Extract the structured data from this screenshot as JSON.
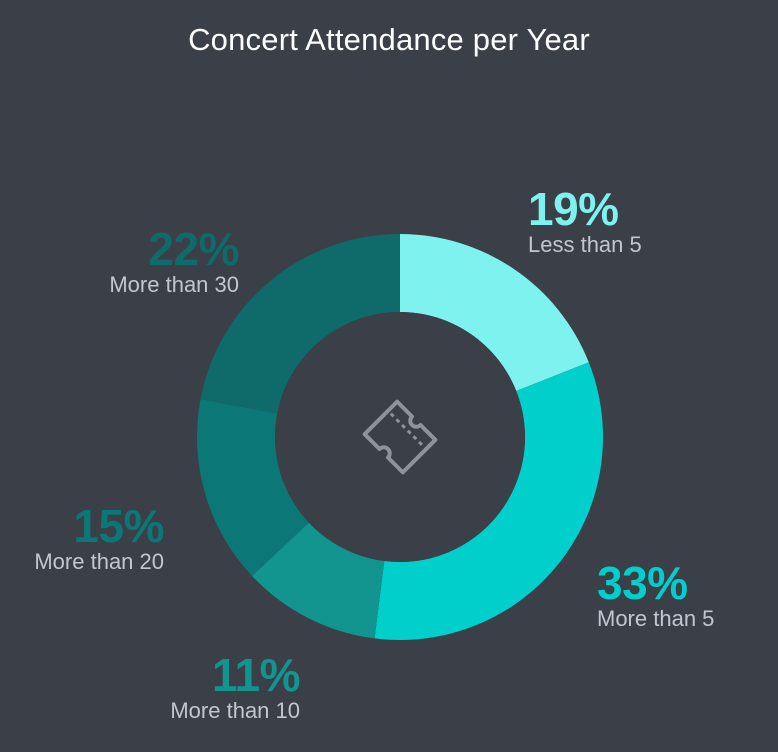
{
  "chart_data": {
    "type": "pie",
    "title": "Concert Attendance per Year",
    "center_icon": "ticket-icon",
    "slices": [
      {
        "label": "Less than 5",
        "value": 19,
        "display": "19%",
        "color": "#7ef2ee",
        "label_color": "#7ef2ee"
      },
      {
        "label": "More than 5",
        "value": 33,
        "display": "33%",
        "color": "#00cfcb",
        "label_color": "#00cfcb"
      },
      {
        "label": "More than 10",
        "value": 11,
        "display": "11%",
        "color": "#13958f",
        "label_color": "#13958f"
      },
      {
        "label": "More than 20",
        "value": 15,
        "display": "15%",
        "color": "#0b7776",
        "label_color": "#0b7776"
      },
      {
        "label": "More than 30",
        "value": 22,
        "display": "22%",
        "color": "#0f6a6a",
        "label_color": "#0f6a6a"
      }
    ]
  },
  "colors": {
    "background": "#3b3f48",
    "center": "#3b3f48",
    "icon": "#8d929c"
  }
}
